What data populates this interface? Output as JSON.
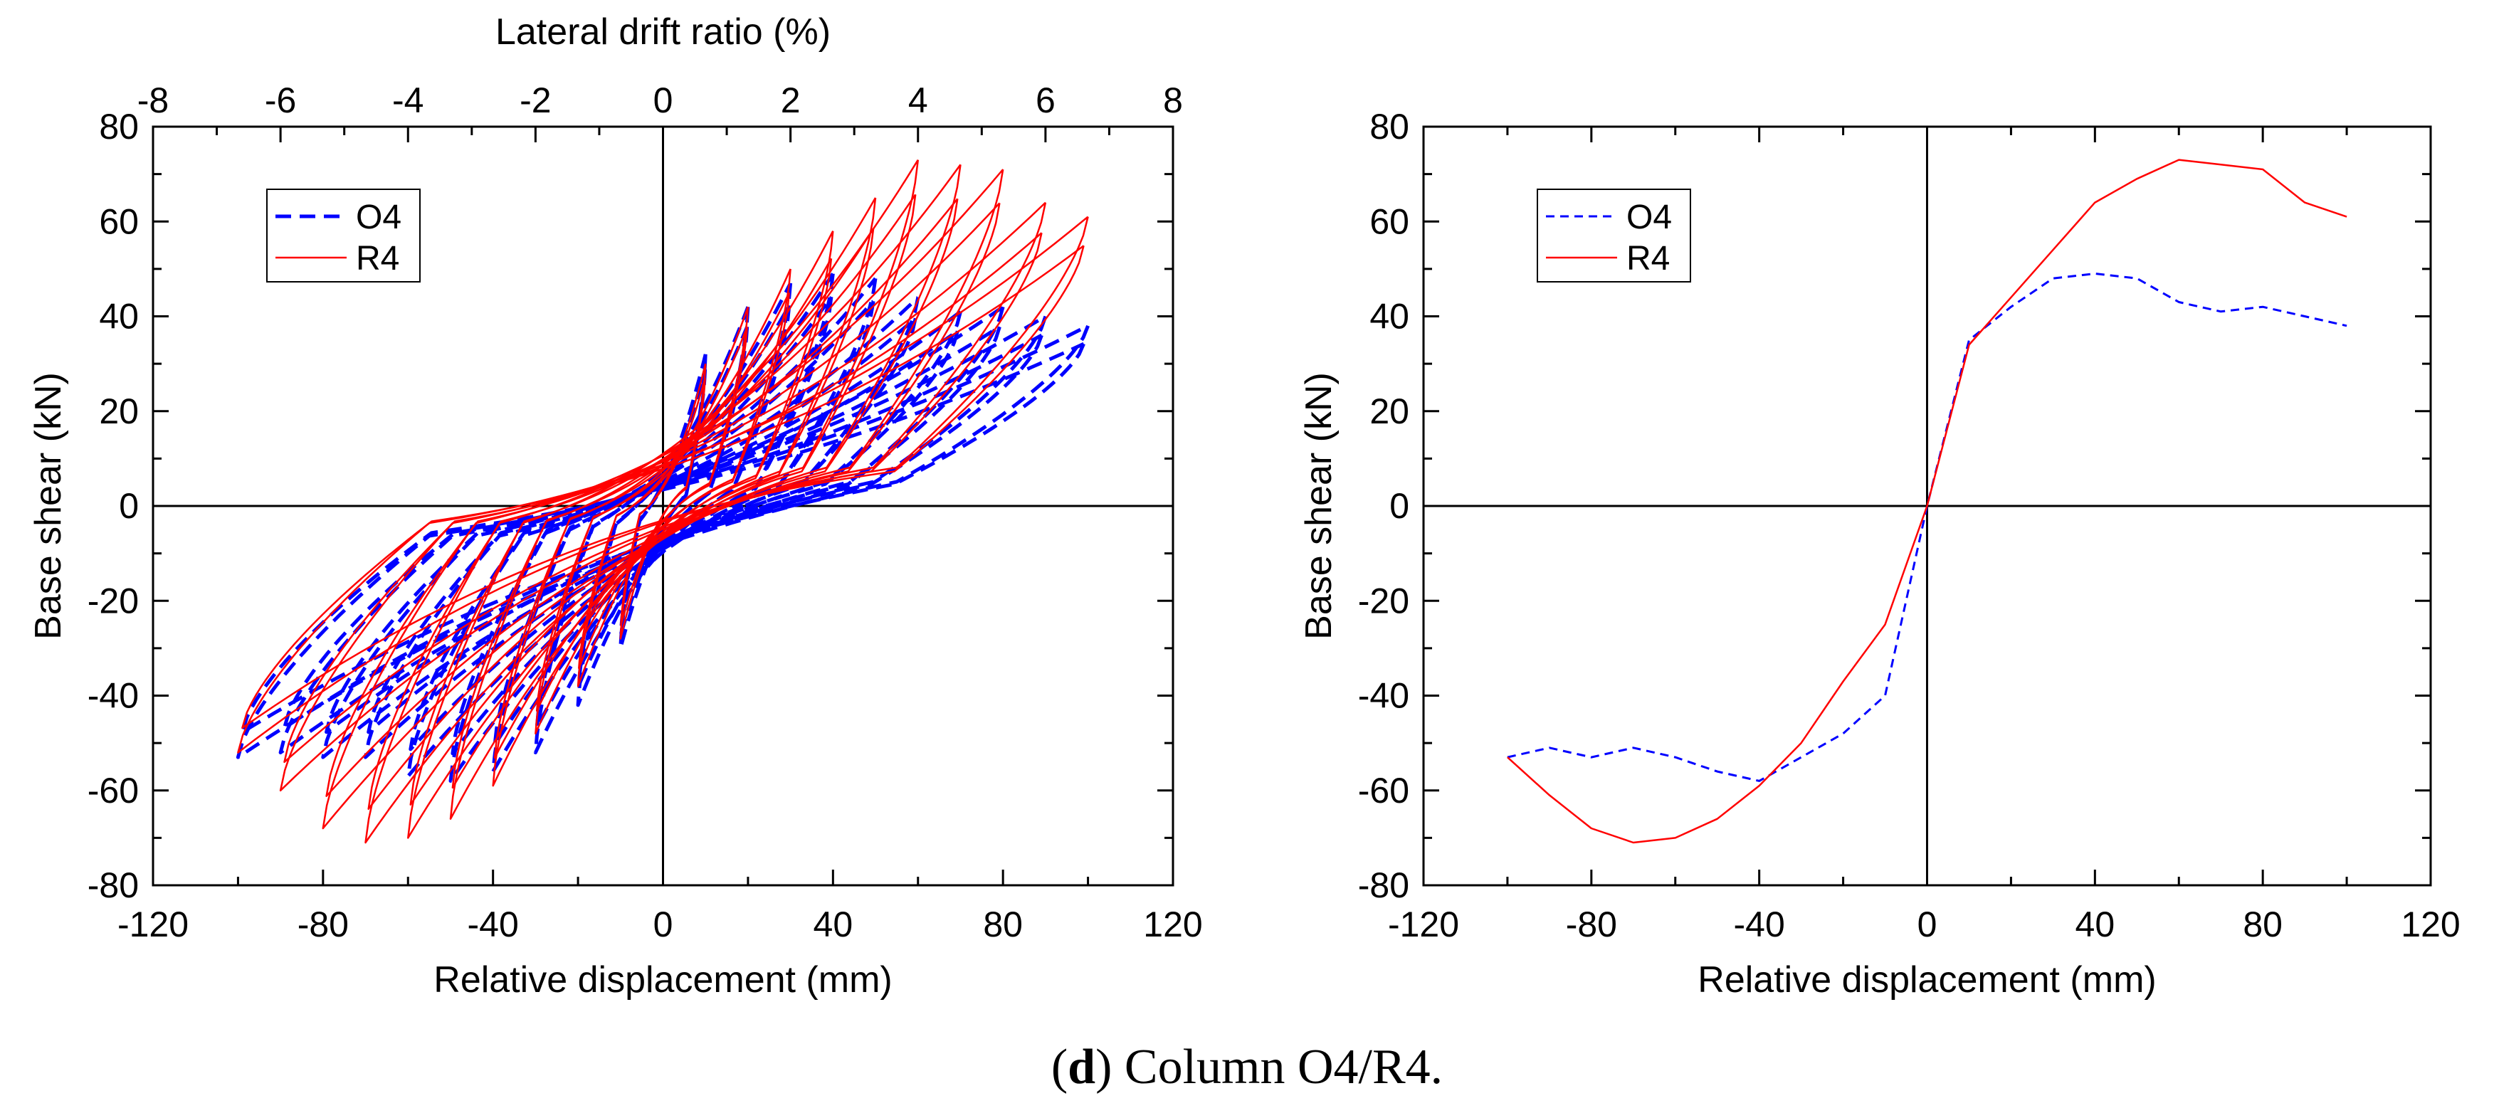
{
  "caption": {
    "letter": "d",
    "text": ") Column O4/R4."
  },
  "colors": {
    "O4": "#0000ff",
    "R4": "#ff0000"
  },
  "chart_data": [
    {
      "type": "line",
      "title": "",
      "xlabel": "Relative displacement (mm)",
      "ylabel": "Base shear (kN)",
      "x2label": "Lateral drift ratio (%)",
      "xlim": [
        -120,
        120
      ],
      "ylim": [
        -80,
        80
      ],
      "x2lim": [
        -8,
        8
      ],
      "xticks": [
        "-120",
        "-80",
        "-40",
        "0",
        "40",
        "80",
        "120"
      ],
      "yticks": [
        "-80",
        "-60",
        "-40",
        "-20",
        "0",
        "20",
        "40",
        "60",
        "80"
      ],
      "x2ticks": [
        "-8",
        "-6",
        "-4",
        "-2",
        "0",
        "2",
        "4",
        "6",
        "8"
      ],
      "grid": false,
      "legend_position": "top-left",
      "series": [
        {
          "name": "O4",
          "style": "dashed",
          "envelope_pos": [
            [
              0,
              0
            ],
            [
              5,
              20
            ],
            [
              10,
              32
            ],
            [
              15,
              38
            ],
            [
              20,
              42
            ],
            [
              25,
              44
            ],
            [
              30,
              47
            ],
            [
              40,
              49
            ],
            [
              50,
              48
            ],
            [
              60,
              44
            ],
            [
              70,
              41
            ],
            [
              80,
              42
            ],
            [
              90,
              40
            ],
            [
              100,
              38
            ]
          ],
          "envelope_neg": [
            [
              0,
              0
            ],
            [
              -5,
              -20
            ],
            [
              -10,
              -30
            ],
            [
              -20,
              -42
            ],
            [
              -30,
              -52
            ],
            [
              -40,
              -56
            ],
            [
              -50,
              -58
            ],
            [
              -60,
              -57
            ],
            [
              -70,
              -53
            ],
            [
              -80,
              -53
            ],
            [
              -90,
              -52
            ],
            [
              -100,
              -53
            ]
          ],
          "residual_pos": 17,
          "residual_neg": -21,
          "pinch": 0.5
        },
        {
          "name": "R4",
          "style": "solid",
          "envelope_pos": [
            [
              0,
              0
            ],
            [
              5,
              20
            ],
            [
              10,
              30
            ],
            [
              20,
              42
            ],
            [
              30,
              50
            ],
            [
              40,
              58
            ],
            [
              50,
              65
            ],
            [
              60,
              73
            ],
            [
              70,
              72
            ],
            [
              80,
              71
            ],
            [
              90,
              64
            ],
            [
              100,
              61
            ]
          ],
          "envelope_neg": [
            [
              0,
              0
            ],
            [
              -5,
              -20
            ],
            [
              -10,
              -28
            ],
            [
              -20,
              -38
            ],
            [
              -30,
              -48
            ],
            [
              -40,
              -59
            ],
            [
              -50,
              -66
            ],
            [
              -60,
              -70
            ],
            [
              -70,
              -71
            ],
            [
              -80,
              -68
            ],
            [
              -90,
              -60
            ],
            [
              -100,
              -52
            ]
          ],
          "residual_pos": 27,
          "residual_neg": -12,
          "pinch": 0.35
        }
      ]
    },
    {
      "type": "line",
      "title": "",
      "xlabel": "Relative displacement (mm)",
      "ylabel": "Base shear (kN)",
      "xlim": [
        -120,
        120
      ],
      "ylim": [
        -80,
        80
      ],
      "xticks": [
        "-120",
        "-80",
        "-40",
        "0",
        "40",
        "80",
        "120"
      ],
      "yticks": [
        "-80",
        "-60",
        "-40",
        "-20",
        "0",
        "20",
        "40",
        "60",
        "80"
      ],
      "grid": false,
      "legend_position": "top-left",
      "series": [
        {
          "name": "O4",
          "style": "dashed",
          "x": [
            -100,
            -90,
            -80,
            -70,
            -60,
            -50,
            -40,
            -30,
            -20,
            -10,
            0,
            10,
            20,
            30,
            40,
            50,
            60,
            70,
            80,
            90,
            100
          ],
          "y": [
            -53,
            -51,
            -53,
            -51,
            -53,
            -56,
            -58,
            -53,
            -48,
            -40,
            0,
            35,
            42,
            48,
            49,
            48,
            43,
            41,
            42,
            40,
            38
          ]
        },
        {
          "name": "R4",
          "style": "solid",
          "x": [
            -100,
            -90,
            -80,
            -70,
            -60,
            -50,
            -40,
            -30,
            -20,
            -10,
            0,
            10,
            20,
            30,
            40,
            50,
            60,
            70,
            80,
            90,
            100
          ],
          "y": [
            -53,
            -61,
            -68,
            -71,
            -70,
            -66,
            -59,
            -50,
            -37,
            -25,
            0,
            34,
            44,
            54,
            64,
            69,
            73,
            72,
            71,
            64,
            61
          ]
        }
      ]
    }
  ]
}
